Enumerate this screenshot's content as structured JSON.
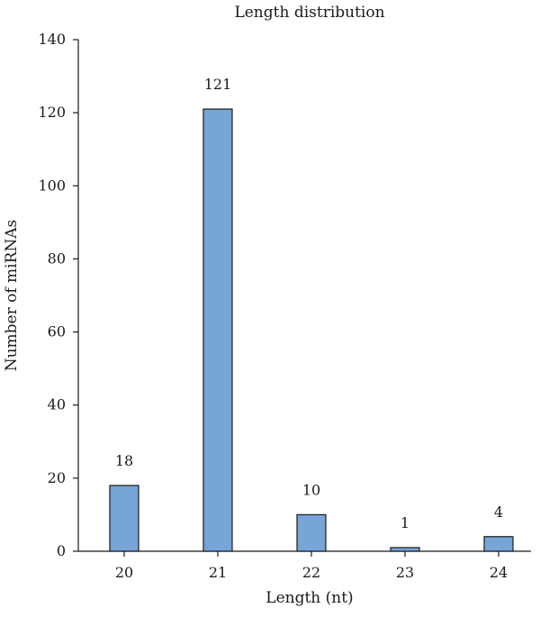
{
  "chart_data": {
    "type": "bar",
    "title": "Length distribution",
    "xlabel": "Length (nt)",
    "ylabel": "Number of miRNAs",
    "categories": [
      "20",
      "21",
      "22",
      "23",
      "24"
    ],
    "values": [
      18,
      121,
      10,
      1,
      4
    ],
    "data_labels": [
      "18",
      "121",
      "10",
      "1",
      "4"
    ],
    "ylim": [
      0,
      140
    ],
    "yticks": [
      0,
      20,
      40,
      60,
      80,
      100,
      120,
      140
    ],
    "grid": false,
    "legend": "none",
    "bar_color": "#76a5d6"
  }
}
